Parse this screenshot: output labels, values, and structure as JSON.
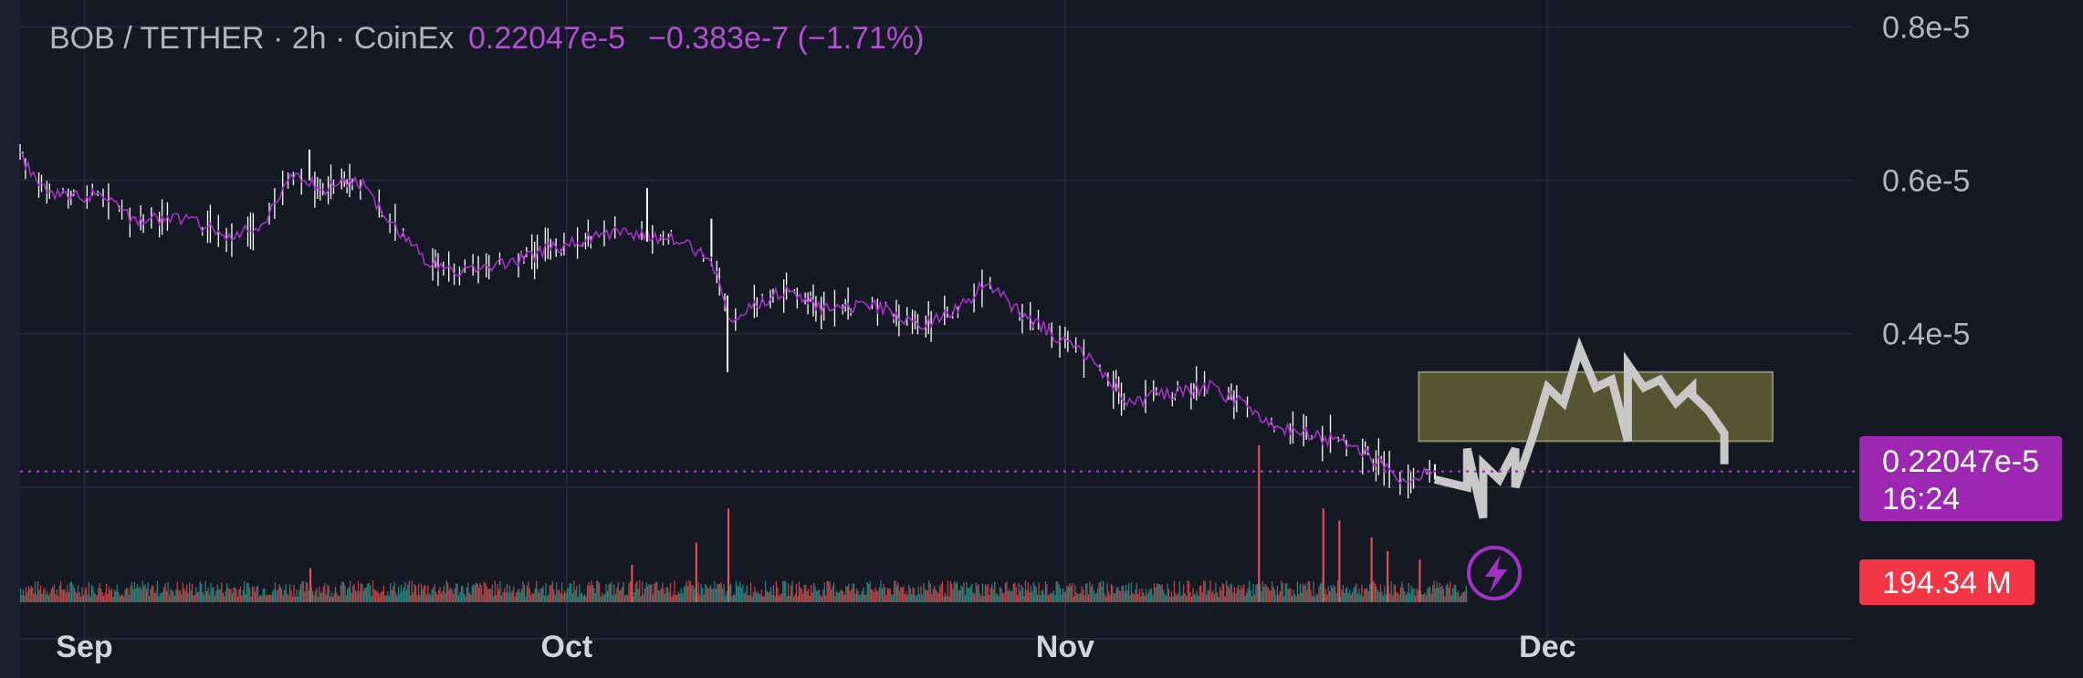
{
  "header": {
    "symbol": "BOB / TETHER · 2h · CoinEx",
    "price": "0.22047e-5",
    "change": "−0.383e-7 (−1.71%)"
  },
  "price_badge": {
    "price": "0.22047e-5",
    "countdown": "16:24"
  },
  "volume_badge": {
    "value": "194.34 M"
  },
  "colors": {
    "background": "#151924",
    "grid": "#232835",
    "line_price": "#a332c6",
    "wick": "#ffffff",
    "volume_up": "#26a69a",
    "volume_down": "#ef5350",
    "zone_fill": "#6b6a35",
    "zone_stroke": "#8f8e6a",
    "badge_price": "#9c27b0",
    "badge_volume": "#f23645",
    "drawing": "#c8c8c8"
  },
  "icons": {
    "lightning": "lightning-bolt-icon"
  },
  "chart_data": {
    "type": "line",
    "xlabel": "",
    "ylabel": "",
    "x_ticks": [
      "Sep",
      "Oct",
      "Nov",
      "Dec"
    ],
    "x_tick_dates": [
      "2024-09-01",
      "2024-10-01",
      "2024-11-01",
      "2024-12-01"
    ],
    "y_ticks": [
      {
        "value": 0.8,
        "label": "0.8e-5"
      },
      {
        "value": 0.6,
        "label": "0.6e-5"
      },
      {
        "value": 0.4,
        "label": "0.4e-5"
      }
    ],
    "ylim": [
      0.05,
      0.835
    ],
    "xlim": [
      "2024-08-28",
      "2024-12-20"
    ],
    "grid": true,
    "price_unit": "e-5",
    "current_price": 0.22047,
    "series": [
      {
        "values": [
          {
            "x": "2024-08-28",
            "y": 0.63
          },
          {
            "x": "2024-08-30",
            "y": 0.58
          },
          {
            "x": "2024-09-02",
            "y": 0.58
          },
          {
            "x": "2024-09-04",
            "y": 0.55
          },
          {
            "x": "2024-09-07",
            "y": 0.55
          },
          {
            "x": "2024-09-10",
            "y": 0.53
          },
          {
            "x": "2024-09-12",
            "y": 0.54
          },
          {
            "x": "2024-09-14",
            "y": 0.61
          },
          {
            "x": "2024-09-16",
            "y": 0.59
          },
          {
            "x": "2024-09-18",
            "y": 0.6
          },
          {
            "x": "2024-09-20",
            "y": 0.55
          },
          {
            "x": "2024-09-22",
            "y": 0.5
          },
          {
            "x": "2024-09-24",
            "y": 0.48
          },
          {
            "x": "2024-09-27",
            "y": 0.49
          },
          {
            "x": "2024-09-30",
            "y": 0.51
          },
          {
            "x": "2024-10-03",
            "y": 0.53
          },
          {
            "x": "2024-10-06",
            "y": 0.53
          },
          {
            "x": "2024-10-08",
            "y": 0.52
          },
          {
            "x": "2024-10-10",
            "y": 0.5
          },
          {
            "x": "2024-10-11",
            "y": 0.42
          },
          {
            "x": "2024-10-13",
            "y": 0.44
          },
          {
            "x": "2024-10-15",
            "y": 0.46
          },
          {
            "x": "2024-10-17",
            "y": 0.43
          },
          {
            "x": "2024-10-20",
            "y": 0.44
          },
          {
            "x": "2024-10-23",
            "y": 0.41
          },
          {
            "x": "2024-10-26",
            "y": 0.44
          },
          {
            "x": "2024-10-27",
            "y": 0.47
          },
          {
            "x": "2024-10-29",
            "y": 0.43
          },
          {
            "x": "2024-11-01",
            "y": 0.39
          },
          {
            "x": "2024-11-03",
            "y": 0.36
          },
          {
            "x": "2024-11-05",
            "y": 0.31
          },
          {
            "x": "2024-11-07",
            "y": 0.32
          },
          {
            "x": "2024-11-10",
            "y": 0.33
          },
          {
            "x": "2024-11-12",
            "y": 0.31
          },
          {
            "x": "2024-11-14",
            "y": 0.28
          },
          {
            "x": "2024-11-16",
            "y": 0.27
          },
          {
            "x": "2024-11-18",
            "y": 0.26
          },
          {
            "x": "2024-11-20",
            "y": 0.24
          },
          {
            "x": "2024-11-22",
            "y": 0.21
          },
          {
            "x": "2024-11-24",
            "y": 0.22
          }
        ]
      }
    ],
    "volume": {
      "label": "194.34 M",
      "spikes": [
        {
          "x": "2024-10-11",
          "value": 0.55
        },
        {
          "x": "2024-10-09",
          "value": 0.35
        },
        {
          "x": "2024-11-13",
          "value": 0.92
        },
        {
          "x": "2024-11-17",
          "value": 0.55
        },
        {
          "x": "2024-11-18",
          "value": 0.48
        },
        {
          "x": "2024-11-20",
          "value": 0.38
        },
        {
          "x": "2024-11-21",
          "value": 0.3
        },
        {
          "x": "2024-11-23",
          "value": 0.25
        },
        {
          "x": "2024-09-15",
          "value": 0.2
        },
        {
          "x": "2024-10-05",
          "value": 0.22
        }
      ]
    },
    "zone": {
      "x_start": "2024-11-23",
      "x_end": "2024-12-15",
      "y_low": 0.26,
      "y_high": 0.35
    },
    "drawing_path": [
      {
        "x": "2024-11-24",
        "y": 0.21
      },
      {
        "x": "2024-11-26",
        "y": 0.2
      },
      {
        "x": "2024-11-26",
        "y": 0.25
      },
      {
        "x": "2024-11-27",
        "y": 0.16
      },
      {
        "x": "2024-11-27",
        "y": 0.23
      },
      {
        "x": "2024-11-28",
        "y": 0.21
      },
      {
        "x": "2024-11-29",
        "y": 0.25
      },
      {
        "x": "2024-11-29",
        "y": 0.2
      },
      {
        "x": "2024-11-30",
        "y": 0.26
      },
      {
        "x": "2024-12-01",
        "y": 0.33
      },
      {
        "x": "2024-12-02",
        "y": 0.31
      },
      {
        "x": "2024-12-03",
        "y": 0.38
      },
      {
        "x": "2024-12-04",
        "y": 0.33
      },
      {
        "x": "2024-12-05",
        "y": 0.34
      },
      {
        "x": "2024-12-06",
        "y": 0.26
      },
      {
        "x": "2024-12-06",
        "y": 0.36
      },
      {
        "x": "2024-12-07",
        "y": 0.33
      },
      {
        "x": "2024-12-08",
        "y": 0.34
      },
      {
        "x": "2024-12-09",
        "y": 0.31
      },
      {
        "x": "2024-12-10",
        "y": 0.33
      },
      {
        "x": "2024-12-10",
        "y": 0.32
      },
      {
        "x": "2024-12-11",
        "y": 0.3
      },
      {
        "x": "2024-12-12",
        "y": 0.27
      },
      {
        "x": "2024-12-12",
        "y": 0.23
      }
    ]
  }
}
